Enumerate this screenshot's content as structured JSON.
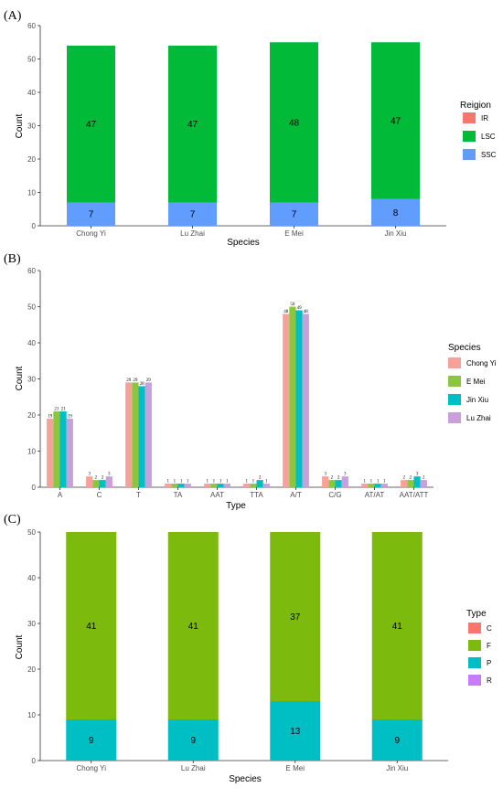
{
  "colors": {
    "IR": "#F8766D",
    "LSC": "#00BA38",
    "SSC": "#619CFF",
    "Chong Yi": "#F8A19A",
    "E Mei": "#8CC63F",
    "Jin Xiu": "#00BFC4",
    "Lu Zhai": "#C9A0DC",
    "C": "#F8766D",
    "F": "#7CBA0E",
    "P": "#00BFC4",
    "R": "#C77CFF"
  },
  "chart_data": [
    {
      "panel_label": "(A)",
      "type": "bar",
      "stacked": true,
      "categories": [
        "Chong Yi",
        "Lu Zhai",
        "E Mei",
        "Jin Xiu"
      ],
      "series": [
        {
          "name": "SSC",
          "values": [
            7,
            7,
            7,
            8
          ]
        },
        {
          "name": "LSC",
          "values": [
            47,
            47,
            48,
            47
          ]
        },
        {
          "name": "IR",
          "values": [
            0,
            0,
            0,
            0
          ]
        }
      ],
      "stack_order": [
        "SSC",
        "LSC"
      ],
      "xlabel": "Species",
      "ylabel": "Count",
      "ylim": [
        0,
        60
      ],
      "yticks": [
        0,
        10,
        20,
        30,
        40,
        50,
        60
      ],
      "legend_title": "Reigion",
      "legend": [
        "IR",
        "LSC",
        "SSC"
      ],
      "legend_position": "right",
      "grid": false
    },
    {
      "panel_label": "(B)",
      "type": "bar",
      "stacked": false,
      "categories": [
        "A",
        "C",
        "T",
        "TA",
        "AAT",
        "TTA",
        "A/T",
        "C/G",
        "AT/AT",
        "AAT/ATT"
      ],
      "series": [
        {
          "name": "Chong Yi",
          "values": [
            19,
            3,
            29,
            1,
            1,
            1,
            48,
            3,
            1,
            2
          ]
        },
        {
          "name": "E Mei",
          "values": [
            21,
            2,
            29,
            1,
            1,
            1,
            50,
            2,
            1,
            2
          ]
        },
        {
          "name": "Jin Xiu",
          "values": [
            21,
            2,
            28,
            1,
            1,
            2,
            49,
            2,
            1,
            3
          ]
        },
        {
          "name": "Lu Zhai",
          "values": [
            19,
            3,
            29,
            1,
            1,
            1,
            48,
            3,
            1,
            2
          ]
        }
      ],
      "xlabel": "Type",
      "ylabel": "Count",
      "ylim": [
        0,
        60
      ],
      "yticks": [
        0,
        10,
        20,
        30,
        40,
        50,
        60
      ],
      "legend_title": "Species",
      "legend": [
        "Chong Yi",
        "E Mei",
        "Jin Xiu",
        "Lu Zhai"
      ],
      "legend_position": "right",
      "grid": false
    },
    {
      "panel_label": "(C)",
      "type": "bar",
      "stacked": true,
      "categories": [
        "Chong Yi",
        "Lu Zhai",
        "E Mei",
        "Jin Xiu"
      ],
      "series": [
        {
          "name": "P",
          "values": [
            9,
            9,
            13,
            9
          ]
        },
        {
          "name": "F",
          "values": [
            41,
            41,
            37,
            41
          ]
        },
        {
          "name": "C",
          "values": [
            0,
            0,
            0,
            0
          ]
        },
        {
          "name": "R",
          "values": [
            0,
            0,
            0,
            0
          ]
        }
      ],
      "stack_order": [
        "P",
        "F"
      ],
      "xlabel": "Species",
      "ylabel": "Count",
      "ylim": [
        0,
        50
      ],
      "yticks": [
        0,
        10,
        20,
        30,
        40,
        50
      ],
      "legend_title": "Type",
      "legend": [
        "C",
        "F",
        "P",
        "R"
      ],
      "legend_position": "right",
      "grid": false
    }
  ]
}
